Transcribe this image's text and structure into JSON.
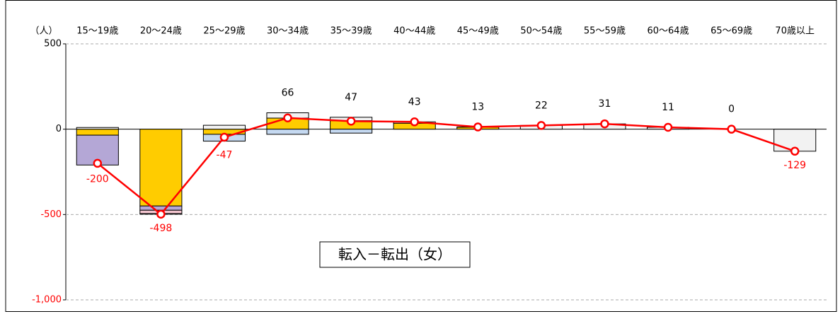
{
  "chart_data": {
    "type": "stacked-bar-line",
    "title": "転入－転出（女）",
    "y_unit": "（人）",
    "categories": [
      "15～19歳",
      "20～24歳",
      "25～29歳",
      "30～34歳",
      "35～39歳",
      "40～44歳",
      "45～49歳",
      "50～54歳",
      "55～59歳",
      "60～64歳",
      "65～69歳",
      "70歳以上"
    ],
    "series": [
      {
        "color": "#ffcc00",
        "values": [
          -35,
          -450,
          -30,
          65,
          50,
          35,
          12,
          0,
          0,
          0,
          0,
          0
        ]
      },
      {
        "color": "#b4a7d6",
        "values": [
          -175,
          -25,
          0,
          0,
          0,
          0,
          0,
          0,
          0,
          0,
          0,
          0
        ]
      },
      {
        "color": "#c5d9f1",
        "values": [
          0,
          0,
          -40,
          -30,
          -23,
          0,
          0,
          0,
          0,
          0,
          0,
          0
        ]
      },
      {
        "color": "#f2c4ce",
        "values": [
          0,
          -20,
          0,
          0,
          0,
          0,
          0,
          0,
          0,
          0,
          0,
          0
        ]
      },
      {
        "color": "#f2f2f2",
        "values": [
          10,
          -3,
          23,
          31,
          20,
          8,
          1,
          22,
          31,
          11,
          0,
          -129
        ]
      }
    ],
    "net": {
      "color": "#ff0000",
      "values": [
        -200,
        -498,
        -47,
        66,
        47,
        43,
        13,
        22,
        31,
        11,
        0,
        -129
      ]
    },
    "ylim": [
      -1000,
      500
    ],
    "yticks": [
      500,
      0,
      -500,
      {
        "value": -1000,
        "label": "-1,000"
      }
    ],
    "grid": true
  }
}
